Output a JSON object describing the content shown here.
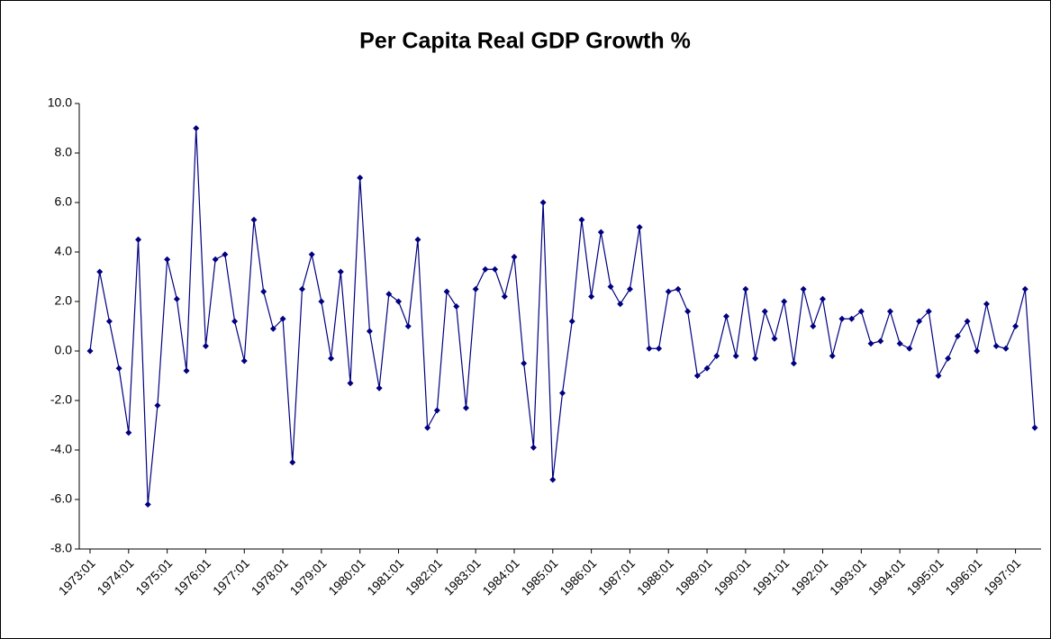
{
  "chart_data": {
    "type": "line",
    "title": "Per Capita Real GDP Growth %",
    "categories": [
      "1973:01",
      null,
      null,
      null,
      "1974:01",
      null,
      null,
      null,
      "1975:01",
      null,
      null,
      null,
      "1976:01",
      null,
      null,
      null,
      "1977:01",
      null,
      null,
      null,
      "1978:01",
      null,
      null,
      null,
      "1979:01",
      null,
      null,
      null,
      "1980:01",
      null,
      null,
      null,
      "1981:01",
      null,
      null,
      null,
      "1982:01",
      null,
      null,
      null,
      "1983:01",
      null,
      null,
      null,
      "1984:01",
      null,
      null,
      null,
      "1985:01",
      null,
      null,
      null,
      "1986:01",
      null,
      null,
      null,
      "1987:01",
      null,
      null,
      null,
      "1988:01",
      null,
      null,
      null,
      "1989:01",
      null,
      null,
      null,
      "1990:01",
      null,
      null,
      null,
      "1991:01",
      null,
      null,
      null,
      "1992:01",
      null,
      null,
      null,
      "1993:01",
      null,
      null,
      null,
      "1994:01",
      null,
      null,
      null,
      "1995:01",
      null,
      null,
      null,
      "1996:01",
      null,
      null,
      null,
      "1997:01",
      null,
      null
    ],
    "values": [
      0.0,
      3.2,
      1.2,
      -0.7,
      -3.3,
      4.5,
      -6.2,
      -2.2,
      3.7,
      2.1,
      -0.8,
      9.0,
      0.2,
      3.7,
      3.9,
      1.2,
      -0.4,
      5.3,
      2.4,
      0.9,
      1.3,
      -4.5,
      2.5,
      3.9,
      2.0,
      -0.3,
      3.2,
      -1.3,
      7.0,
      0.8,
      -1.5,
      2.3,
      2.0,
      1.0,
      4.5,
      -3.1,
      -2.4,
      2.4,
      1.8,
      -2.3,
      2.5,
      3.3,
      3.3,
      2.2,
      3.8,
      -0.5,
      -3.9,
      6.0,
      -5.2,
      -1.7,
      1.2,
      5.3,
      2.2,
      4.8,
      2.6,
      1.9,
      2.5,
      5.0,
      0.1,
      0.1,
      2.4,
      2.5,
      1.6,
      -1.0,
      -0.7,
      -0.2,
      1.4,
      -0.2,
      2.5,
      -0.3,
      1.6,
      0.5,
      2.0,
      -0.5,
      2.5,
      1.0,
      2.1,
      -0.2,
      1.3,
      1.3,
      1.6,
      0.3,
      0.4,
      1.6,
      0.3,
      0.1,
      1.2,
      1.6,
      -1.0,
      -0.3,
      0.6,
      1.2,
      0.0,
      1.9,
      0.2,
      0.1,
      1.0,
      2.5,
      -3.1
    ],
    "color": "#000080",
    "ylim": [
      -8,
      10
    ],
    "yticks": [
      {
        "value": -8,
        "label": "-8.0"
      },
      {
        "value": -6,
        "label": "-6.0"
      },
      {
        "value": -4,
        "label": "-4.0"
      },
      {
        "value": -2,
        "label": "-2.0"
      },
      {
        "value": 0,
        "label": "0.0"
      },
      {
        "value": 2,
        "label": "2.0"
      },
      {
        "value": 4,
        "label": "4.0"
      },
      {
        "value": 6,
        "label": "6.0"
      },
      {
        "value": 8,
        "label": "8.0"
      },
      {
        "value": 10,
        "label": "10.0"
      }
    ],
    "grid": false
  }
}
